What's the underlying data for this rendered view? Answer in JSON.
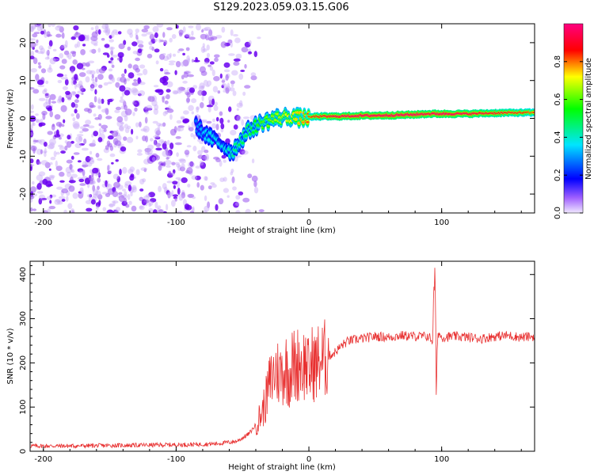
{
  "title": "S129.2023.059.03.15.G06",
  "chart_data": [
    {
      "type": "heatmap",
      "title": "S129.2023.059.03.15.G06",
      "xlabel": "Height of straight line (km)",
      "ylabel": "Frequency (Hz)",
      "xlim": [
        -210,
        170
      ],
      "ylim": [
        -25,
        25
      ],
      "xticks": [
        -200,
        -100,
        0,
        100
      ],
      "yticks": [
        -20,
        -10,
        0,
        10,
        20
      ],
      "colorbar": {
        "label": "Normalized spectral amplitude",
        "range": [
          0,
          1
        ],
        "ticks": [
          "0.0",
          "0.2",
          "0.4",
          "0.6",
          "0.8"
        ],
        "colors": [
          "#cfcfcf",
          "#8a00ff",
          "#0000ff",
          "#00e5ff",
          "#00ff00",
          "#ffff00",
          "#ff0000",
          "#ff0080"
        ]
      },
      "noise_region": {
        "x": [
          -210,
          -50
        ],
        "y": [
          -25,
          25
        ],
        "amplitude": 0.15
      },
      "ridge": {
        "x": [
          -85,
          -75,
          -65,
          -58,
          -52,
          -45,
          -40,
          -35,
          -25,
          -15,
          -5,
          5,
          20,
          40,
          60,
          80,
          90,
          100,
          120,
          140,
          160,
          170
        ],
        "y": [
          -2,
          -5,
          -7,
          -9,
          -6,
          -3,
          -2,
          -1,
          0,
          0.5,
          0,
          0.5,
          0.5,
          0.7,
          0.8,
          1.0,
          1.2,
          1.2,
          1.2,
          1.4,
          1.5,
          1.5
        ],
        "amplitude": [
          0.25,
          0.35,
          0.35,
          0.4,
          0.45,
          0.45,
          0.5,
          0.55,
          0.6,
          0.65,
          0.7,
          0.8,
          0.9,
          0.95,
          0.95,
          0.95,
          0.9,
          0.95,
          0.9,
          0.85,
          0.8,
          0.75
        ]
      }
    },
    {
      "type": "line",
      "xlabel": "Height of straight line (km)",
      "ylabel": "SNR (10 * v/v)",
      "xlim": [
        -210,
        170
      ],
      "ylim": [
        0,
        430
      ],
      "xticks": [
        -200,
        -100,
        0,
        100
      ],
      "yticks": [
        0,
        100,
        200,
        300,
        400
      ],
      "color": "#e83030",
      "series": [
        {
          "x": [
            -210,
            -180,
            -150,
            -120,
            -90,
            -70,
            -55,
            -50,
            -45,
            -40,
            -35,
            -32,
            -30,
            -27,
            -25,
            -22,
            -20,
            -17,
            -15,
            -12,
            -10,
            -7,
            -5,
            -2,
            0,
            3,
            5,
            8,
            10,
            15,
            20,
            25,
            30,
            40,
            50,
            60,
            70,
            80,
            90,
            93,
            94,
            95,
            96,
            97,
            100,
            110,
            120,
            130,
            140,
            150,
            160,
            170
          ],
          "y": [
            12,
            12,
            13,
            14,
            15,
            17,
            22,
            30,
            40,
            60,
            90,
            120,
            150,
            170,
            185,
            175,
            180,
            190,
            170,
            200,
            185,
            210,
            195,
            200,
            175,
            205,
            190,
            210,
            205,
            215,
            225,
            240,
            250,
            255,
            260,
            258,
            262,
            260,
            260,
            250,
            340,
            420,
            110,
            270,
            258,
            260,
            258,
            255,
            260,
            262,
            258,
            260
          ]
        }
      ]
    }
  ]
}
